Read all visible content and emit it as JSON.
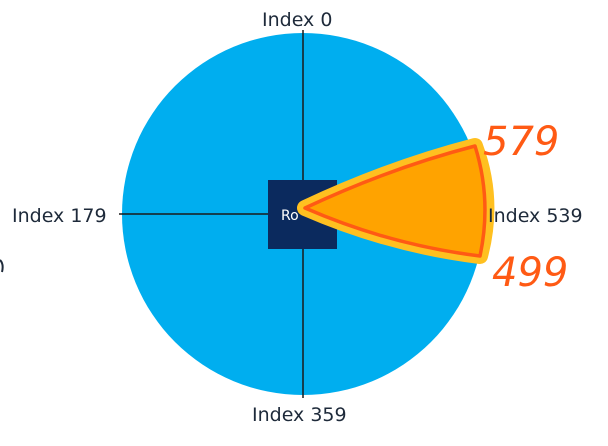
{
  "labels": {
    "top": "Index 0",
    "left": "Index 179",
    "right": "Index 539",
    "bottom": "Index 359"
  },
  "robot": {
    "label": "Ro"
  },
  "annotations": {
    "upper": "579",
    "lower": "499"
  },
  "colors": {
    "circle": "#00aeef",
    "robot": "#0b2a5e",
    "axes": "#1a1a1a",
    "wedge_fill": "#ffa300",
    "wedge_glow": "#ffc020",
    "annotation": "#ff5a14"
  }
}
